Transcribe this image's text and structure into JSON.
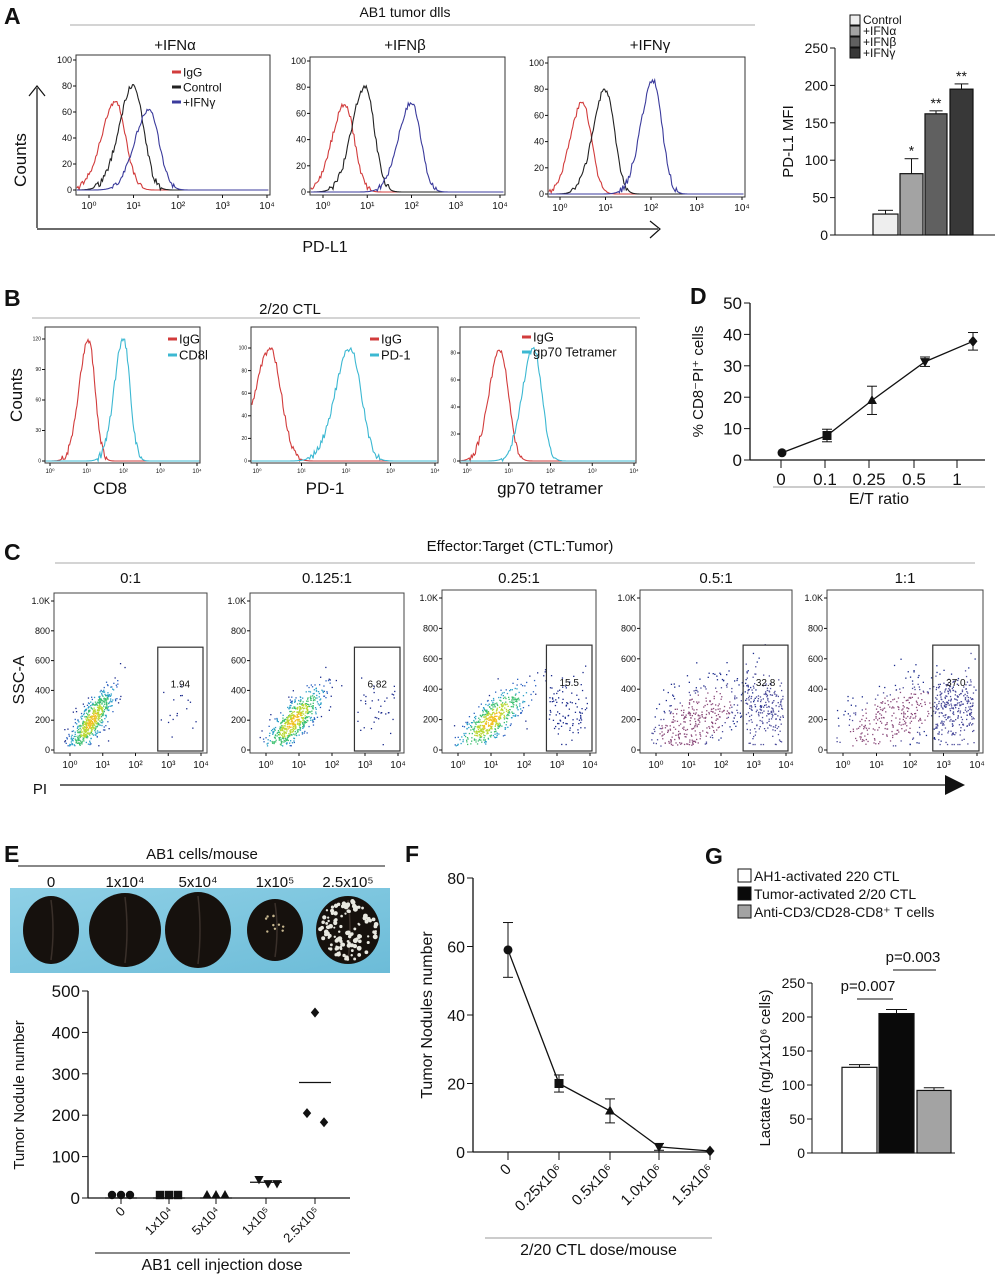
{
  "panels": {
    "A": {
      "label": "A",
      "title": "AB1 tumor dlls",
      "ylabel": "Counts",
      "xlabel": "PD-L1"
    },
    "B": {
      "label": "B",
      "title": "2/20 CTL",
      "ylabel": "Counts"
    },
    "C": {
      "label": "C",
      "title": "Effector:Target   (CTL:Tumor)",
      "ylabel": "SSC-A",
      "xlabel": "PI"
    },
    "D": {
      "label": "D"
    },
    "E": {
      "label": "E",
      "photo_title": "AB1 cells/mouse",
      "photo_labels": [
        "0",
        "1x10⁴",
        "5x10⁴",
        "1x10⁵",
        "2.5x10⁵"
      ]
    },
    "F": {
      "label": "F"
    },
    "G": {
      "label": "G"
    }
  },
  "chart_data": [
    {
      "panel": "A",
      "type": "histogram",
      "title": "+IFNα",
      "xscale": "log",
      "xticks": [
        "10⁰",
        "10¹",
        "10²",
        "10³",
        "10⁴"
      ],
      "yticks": [
        0,
        20,
        40,
        60,
        80,
        100
      ],
      "legend": true,
      "series": [
        {
          "name": "IgG",
          "color": "#d23c3c",
          "peak_log": 0.6,
          "peak_count": 68
        },
        {
          "name": "Control",
          "color": "#222222",
          "peak_log": 1.0,
          "peak_count": 81
        },
        {
          "name": "+IFNγ",
          "color": "#3b3b9c",
          "peak_log": 1.35,
          "peak_count": 62
        }
      ]
    },
    {
      "panel": "A",
      "type": "histogram",
      "title": "+IFNβ",
      "xscale": "log",
      "xticks": [
        "10⁰",
        "10¹",
        "10²",
        "10³",
        "10⁴"
      ],
      "yticks": [
        0,
        20,
        40,
        60,
        80,
        100
      ],
      "legend": false,
      "series": [
        {
          "color": "#d23c3c",
          "peak_log": 0.5,
          "peak_count": 67
        },
        {
          "color": "#222222",
          "peak_log": 0.95,
          "peak_count": 81
        },
        {
          "color": "#3b3b9c",
          "peak_log": 2.0,
          "peak_count": 68
        }
      ]
    },
    {
      "panel": "A",
      "type": "histogram",
      "title": "+IFNγ",
      "xscale": "log",
      "xticks": [
        "10⁰",
        "10¹",
        "10²",
        "10³",
        "10⁴"
      ],
      "yticks": [
        0,
        20,
        40,
        60,
        80,
        100
      ],
      "legend": false,
      "series": [
        {
          "color": "#d23c3c",
          "peak_log": 0.5,
          "peak_count": 70
        },
        {
          "color": "#222222",
          "peak_log": 1.0,
          "peak_count": 80
        },
        {
          "color": "#3b3b9c",
          "peak_log": 2.05,
          "peak_count": 87
        }
      ]
    },
    {
      "panel": "A",
      "type": "bar",
      "ylabel": "PD-L1 MFI",
      "ylim": [
        0,
        250
      ],
      "yticks": [
        0,
        50,
        100,
        150,
        200,
        250
      ],
      "categories": [
        "Control",
        "+IFNα",
        "+IFNβ",
        "+IFNγ"
      ],
      "values": [
        28,
        82,
        162,
        195
      ],
      "errors": [
        5,
        20,
        4,
        7
      ],
      "significance": [
        "",
        "*",
        "**",
        "**"
      ],
      "colors": [
        "#eeeeee",
        "#a3a3a3",
        "#606060",
        "#383838"
      ],
      "legend": "top"
    },
    {
      "panel": "B",
      "type": "histogram",
      "xlabel": "CD8",
      "xscale": "log",
      "xticks": [
        "10⁰",
        "10¹",
        "10²",
        "10³",
        "10⁴"
      ],
      "yticks": [
        0,
        30,
        60,
        90,
        120
      ],
      "legend": true,
      "series": [
        {
          "name": "IgG",
          "color": "#d23c3c",
          "peak_log": 1.05,
          "peak_count": 120
        },
        {
          "name": "CD8l",
          "color": "#3cb8d2",
          "peak_log": 2.0,
          "peak_count": 120
        }
      ]
    },
    {
      "panel": "B",
      "type": "histogram",
      "xlabel": "PD-1",
      "xscale": "log",
      "xticks": [
        "10⁰",
        "10¹",
        "10²",
        "10³",
        "10⁴"
      ],
      "yticks": [
        0,
        20,
        40,
        60,
        80,
        100
      ],
      "legend": true,
      "series": [
        {
          "name": "IgG",
          "color": "#d23c3c",
          "peak_log": 0.3,
          "peak_count": 100
        },
        {
          "name": "PD-1",
          "color": "#3cb8d2",
          "peak_log": 2.1,
          "peak_count": 100
        }
      ]
    },
    {
      "panel": "B",
      "type": "histogram",
      "xlabel": "gp70 tetramer",
      "xscale": "log",
      "xticks": [
        "10⁰",
        "10¹",
        "10²",
        "10³",
        "10⁴"
      ],
      "yticks": [
        0,
        20,
        40,
        60,
        80
      ],
      "legend": true,
      "series": [
        {
          "name": "IgG",
          "color": "#d23c3c",
          "peak_log": 0.8,
          "peak_count": 82
        },
        {
          "name": "gp70 Tetramer",
          "color": "#3cb8d2",
          "peak_log": 1.6,
          "peak_count": 84
        }
      ]
    },
    {
      "panel": "C",
      "type": "scatter",
      "title": "0:1",
      "gate_percent": "1.94",
      "xticks": [
        "10⁰",
        "10¹",
        "10²",
        "10³",
        "10⁴"
      ],
      "yticks": [
        0,
        200,
        400,
        600,
        800,
        1000
      ],
      "ytick_labels": [
        "0",
        "200",
        "400",
        "600",
        "800",
        "1.0K"
      ]
    },
    {
      "panel": "C",
      "type": "scatter",
      "title": "0.125:1",
      "gate_percent": "6.82",
      "xticks": [
        "10⁰",
        "10¹",
        "10²",
        "10³",
        "10⁴"
      ],
      "yticks": [
        0,
        200,
        400,
        600,
        800,
        1000
      ],
      "ytick_labels": [
        "0",
        "200",
        "400",
        "600",
        "800",
        "1.0K"
      ]
    },
    {
      "panel": "C",
      "type": "scatter",
      "title": "0.25:1",
      "gate_percent": "15.5",
      "xticks": [
        "10⁰",
        "10¹",
        "10²",
        "10³",
        "10⁴"
      ],
      "yticks": [
        0,
        200,
        400,
        600,
        800,
        1000
      ],
      "ytick_labels": [
        "0",
        "200",
        "400",
        "600",
        "800",
        "1.0K"
      ]
    },
    {
      "panel": "C",
      "type": "scatter",
      "title": "0.5:1",
      "gate_percent": "32.8",
      "xticks": [
        "10⁰",
        "10¹",
        "10²",
        "10³",
        "10⁴"
      ],
      "yticks": [
        0,
        200,
        400,
        600,
        800,
        1000
      ],
      "ytick_labels": [
        "0",
        "200",
        "400",
        "600",
        "800",
        "1.0K"
      ]
    },
    {
      "panel": "C",
      "type": "scatter",
      "title": "1:1",
      "gate_percent": "37.0",
      "xticks": [
        "10⁰",
        "10¹",
        "10²",
        "10³",
        "10⁴"
      ],
      "yticks": [
        0,
        200,
        400,
        600,
        800,
        1000
      ],
      "ytick_labels": [
        "0",
        "200",
        "400",
        "600",
        "800",
        "1.0K"
      ]
    },
    {
      "panel": "D",
      "type": "line",
      "ylabel": "% CD8⁻PI⁺ cells",
      "xlabel": "E/T ratio",
      "ylim": [
        0,
        50
      ],
      "yticks": [
        0,
        10,
        20,
        30,
        40,
        50
      ],
      "categories": [
        "0",
        "0.1",
        "0.25",
        "0.5",
        "1"
      ],
      "values": [
        2.3,
        7.8,
        19,
        31.3,
        37.8
      ],
      "errors": [
        0.5,
        2,
        4.5,
        1.5,
        2.8
      ],
      "markers": [
        "circle",
        "square",
        "triangle-up",
        "triangle-down",
        "diamond"
      ]
    },
    {
      "panel": "E",
      "type": "scatter",
      "ylabel": "Tumor Nodule number",
      "xlabel": "AB1 cell injection dose",
      "ylim": [
        0,
        500
      ],
      "yticks": [
        0,
        100,
        200,
        300,
        400,
        500
      ],
      "categories": [
        "0",
        "1x10⁴",
        "5x10⁴",
        "1x10⁵",
        "2.5x10⁵"
      ],
      "points": [
        [
          0,
          0,
          0
        ],
        [
          0,
          0,
          0
        ],
        [
          0,
          0,
          0
        ],
        [
          45,
          35,
          35
        ],
        [
          448,
          205,
          183
        ]
      ],
      "means": [
        0,
        0,
        0,
        38,
        279
      ],
      "markers": [
        "circle",
        "square",
        "triangle-up",
        "triangle-down",
        "diamond"
      ]
    },
    {
      "panel": "F",
      "type": "line",
      "ylabel": "Tumor Nodules number",
      "xlabel": "2/20 CTL dose/mouse",
      "ylim": [
        0,
        80
      ],
      "yticks": [
        0,
        20,
        40,
        60,
        80
      ],
      "categories": [
        "0",
        "0.25x10⁶",
        "0.5x10⁶",
        "1.0x10⁶",
        "1.5x10⁶"
      ],
      "values": [
        59,
        20,
        12,
        1.5,
        0.3
      ],
      "errors": [
        8,
        2.5,
        3.5,
        1,
        0.3
      ],
      "markers": [
        "circle",
        "square",
        "triangle-up",
        "triangle-down",
        "diamond"
      ]
    },
    {
      "panel": "G",
      "type": "bar",
      "ylabel": "Lactate (ng/1x10⁶ cells)",
      "ylim": [
        0,
        250
      ],
      "yticks": [
        0,
        50,
        100,
        150,
        200,
        250
      ],
      "categories": [
        "AH1-activated 220 CTL",
        "Tumor-activated 2/20 CTL",
        "Anti-CD3/CD28-CD8⁺ T cells"
      ],
      "values": [
        126,
        205,
        92
      ],
      "errors": [
        4,
        6,
        4
      ],
      "colors": [
        "#ffffff",
        "#0a0a0a",
        "#a3a3a3"
      ],
      "annotations": [
        "p=0.007",
        "p=0.003"
      ],
      "legend": "top"
    }
  ]
}
